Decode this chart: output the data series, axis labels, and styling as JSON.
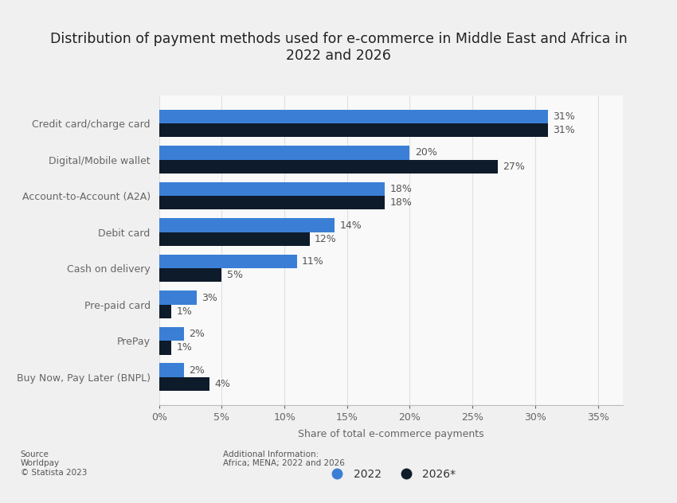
{
  "title": "Distribution of payment methods used for e-commerce in Middle East and Africa in\n2022 and 2026",
  "categories": [
    "Credit card/charge card",
    "Digital/Mobile wallet",
    "Account-to-Account (A2A)",
    "Debit card",
    "Cash on delivery",
    "Pre-paid card",
    "PrePay",
    "Buy Now, Pay Later (BNPL)"
  ],
  "values_2022": [
    31,
    20,
    18,
    14,
    11,
    3,
    2,
    2
  ],
  "values_2026": [
    31,
    27,
    18,
    12,
    5,
    1,
    1,
    4
  ],
  "color_2022": "#3a7fd5",
  "color_2026": "#0d1b2a",
  "xlabel": "Share of total e-commerce payments",
  "xlim": [
    0,
    37
  ],
  "xticks": [
    0,
    5,
    10,
    15,
    20,
    25,
    30,
    35
  ],
  "xtick_labels": [
    "0%",
    "5%",
    "10%",
    "15%",
    "20%",
    "25%",
    "30%",
    "35%"
  ],
  "legend_2022": "2022",
  "legend_2026": "2026*",
  "bar_height": 0.38,
  "background_color": "#f0f0f0",
  "plot_background_color": "#f9f9f9",
  "source_text": "Source\nWorldpay\n© Statista 2023",
  "additional_text": "Additional Information:\nAfrica; MENA; 2022 and 2026",
  "title_fontsize": 12.5,
  "label_fontsize": 9,
  "tick_fontsize": 9,
  "annotation_fontsize": 9
}
